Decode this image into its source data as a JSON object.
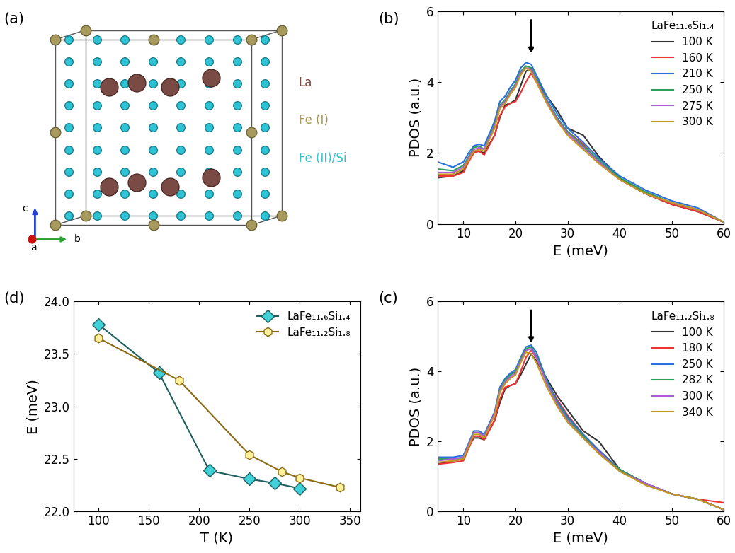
{
  "diagram": {
    "label": "(a)",
    "species": [
      {
        "name": "La",
        "color": "#7a4a44"
      },
      {
        "name": "Fe (I)",
        "color": "#a89a5c"
      },
      {
        "name": "Fe (II)/Si",
        "color": "#2ec4d6"
      }
    ],
    "axes_labels": [
      "a",
      "b",
      "c"
    ]
  },
  "chart_data": [
    {
      "type": "line",
      "label": "(b)",
      "legend_title": "LaFe₁₁.₆Si₁.₄",
      "xlabel": "E (meV)",
      "ylabel": "PDOS (a.u.)",
      "arrow_x": 23,
      "legend": "upper right",
      "x": [
        5,
        8,
        10,
        11,
        12,
        13,
        14,
        16,
        17,
        18,
        19,
        20,
        21,
        22,
        23,
        24,
        26,
        28,
        30,
        33,
        36,
        40,
        45,
        50,
        55,
        60
      ],
      "xlim": [
        5,
        60
      ],
      "xticks": [
        10,
        20,
        30,
        40,
        50,
        60
      ],
      "ylim": [
        0,
        6
      ],
      "yticks": [
        0,
        2,
        4,
        6
      ],
      "series": [
        {
          "name": "100 K",
          "color": "#333333",
          "values": [
            1.3,
            1.35,
            1.5,
            1.8,
            2.05,
            2.05,
            2.0,
            2.5,
            3.0,
            3.35,
            3.4,
            3.5,
            3.9,
            4.3,
            4.4,
            4.1,
            3.6,
            3.2,
            2.7,
            2.5,
            1.9,
            1.3,
            0.85,
            0.55,
            0.35,
            0.05
          ]
        },
        {
          "name": "160 K",
          "color": "#ee3333",
          "values": [
            1.35,
            1.35,
            1.45,
            1.75,
            2.0,
            2.05,
            1.95,
            2.5,
            3.05,
            3.3,
            3.4,
            3.45,
            3.7,
            4.0,
            4.25,
            4.0,
            3.45,
            2.95,
            2.6,
            2.25,
            1.75,
            1.25,
            0.85,
            0.55,
            0.35,
            0.05
          ]
        },
        {
          "name": "210 K",
          "color": "#2a6fdb",
          "values": [
            1.75,
            1.6,
            1.75,
            2.0,
            2.2,
            2.25,
            2.2,
            2.9,
            3.45,
            3.6,
            3.85,
            4.05,
            4.4,
            4.55,
            4.5,
            4.2,
            3.6,
            3.1,
            2.7,
            2.3,
            1.85,
            1.35,
            0.95,
            0.65,
            0.45,
            0.05
          ]
        },
        {
          "name": "250 K",
          "color": "#2ca05a",
          "values": [
            1.55,
            1.5,
            1.65,
            1.9,
            2.15,
            2.2,
            2.1,
            2.8,
            3.35,
            3.5,
            3.75,
            3.95,
            4.3,
            4.45,
            4.4,
            4.1,
            3.5,
            3.0,
            2.6,
            2.2,
            1.8,
            1.3,
            0.9,
            0.6,
            0.4,
            0.05
          ]
        },
        {
          "name": "275 K",
          "color": "#b05ad6",
          "values": [
            1.45,
            1.45,
            1.6,
            1.85,
            2.1,
            2.15,
            2.1,
            2.75,
            3.3,
            3.45,
            3.7,
            3.9,
            4.25,
            4.4,
            4.35,
            4.05,
            3.45,
            2.95,
            2.55,
            2.15,
            1.75,
            1.25,
            0.85,
            0.6,
            0.4,
            0.05
          ]
        },
        {
          "name": "300 K",
          "color": "#c49a1c",
          "values": [
            1.4,
            1.4,
            1.55,
            1.8,
            2.05,
            2.1,
            2.05,
            2.7,
            3.25,
            3.4,
            3.65,
            3.85,
            4.2,
            4.4,
            4.3,
            4.0,
            3.4,
            2.9,
            2.5,
            2.1,
            1.7,
            1.25,
            0.85,
            0.6,
            0.4,
            0.05
          ]
        }
      ]
    },
    {
      "type": "line",
      "label": "(c)",
      "legend_title": "LaFe₁₁.₂Si₁.₈",
      "xlabel": "E (meV)",
      "ylabel": "PDOS (a.u.)",
      "arrow_x": 23,
      "legend": "upper right",
      "x": [
        5,
        8,
        10,
        11,
        12,
        13,
        14,
        16,
        17,
        18,
        19,
        20,
        21,
        22,
        23,
        24,
        26,
        28,
        30,
        33,
        36,
        40,
        45,
        50,
        55,
        60
      ],
      "xlim": [
        5,
        60
      ],
      "xticks": [
        10,
        20,
        30,
        40,
        50,
        60
      ],
      "ylim": [
        0,
        6
      ],
      "yticks": [
        0,
        2,
        4,
        6
      ],
      "series": [
        {
          "name": "100 K",
          "color": "#333333",
          "values": [
            1.35,
            1.45,
            1.5,
            1.85,
            2.1,
            2.1,
            2.05,
            2.6,
            3.1,
            3.5,
            3.6,
            3.65,
            3.9,
            4.2,
            4.5,
            4.3,
            3.8,
            3.3,
            2.9,
            2.3,
            2.0,
            1.2,
            0.8,
            0.5,
            0.35,
            0.05
          ]
        },
        {
          "name": "180 K",
          "color": "#ee3333",
          "values": [
            1.35,
            1.4,
            1.45,
            1.8,
            2.15,
            2.15,
            2.05,
            2.6,
            3.2,
            3.55,
            3.6,
            3.65,
            4.0,
            4.4,
            4.6,
            4.4,
            3.7,
            3.2,
            2.75,
            2.2,
            1.75,
            1.2,
            0.8,
            0.5,
            0.35,
            0.25
          ]
        },
        {
          "name": "250 K",
          "color": "#2a6fdb",
          "values": [
            1.55,
            1.55,
            1.6,
            1.95,
            2.3,
            2.3,
            2.2,
            2.85,
            3.55,
            3.8,
            3.95,
            4.05,
            4.4,
            4.7,
            4.75,
            4.55,
            3.75,
            3.15,
            2.7,
            2.2,
            1.75,
            1.2,
            0.8,
            0.5,
            0.35,
            0.05
          ]
        },
        {
          "name": "282 K",
          "color": "#2ca05a",
          "values": [
            1.5,
            1.5,
            1.55,
            1.9,
            2.25,
            2.25,
            2.15,
            2.8,
            3.5,
            3.75,
            3.9,
            4.0,
            4.35,
            4.65,
            4.7,
            4.45,
            3.7,
            3.1,
            2.65,
            2.15,
            1.7,
            1.2,
            0.8,
            0.5,
            0.35,
            0.05
          ]
        },
        {
          "name": "300 K",
          "color": "#b05ad6",
          "values": [
            1.45,
            1.5,
            1.55,
            1.9,
            2.25,
            2.25,
            2.15,
            2.8,
            3.45,
            3.7,
            3.85,
            3.95,
            4.3,
            4.6,
            4.65,
            4.4,
            3.65,
            3.05,
            2.6,
            2.1,
            1.7,
            1.15,
            0.8,
            0.5,
            0.35,
            0.05
          ]
        },
        {
          "name": "340 K",
          "color": "#c49a1c",
          "values": [
            1.4,
            1.45,
            1.5,
            1.85,
            2.2,
            2.2,
            2.1,
            2.75,
            3.4,
            3.65,
            3.8,
            3.9,
            4.25,
            4.55,
            4.5,
            4.25,
            3.55,
            3.0,
            2.55,
            2.1,
            1.65,
            1.15,
            0.75,
            0.5,
            0.35,
            0.05
          ]
        }
      ]
    },
    {
      "type": "line",
      "label": "(d)",
      "xlabel": "T (K)",
      "ylabel": "E (meV)",
      "legend": "upper right",
      "xlim": [
        75,
        360
      ],
      "xticks": [
        100,
        150,
        200,
        250,
        300,
        350
      ],
      "ylim": [
        22.0,
        24.0
      ],
      "yticks": [
        22.0,
        22.5,
        23.0,
        23.5,
        24.0
      ],
      "series": [
        {
          "name": "LaFe₁₁.₆Si₁.₄",
          "color": "#1f5f5f",
          "marker": "diamond",
          "x": [
            100,
            160,
            210,
            250,
            275,
            300
          ],
          "values": [
            23.78,
            23.32,
            22.39,
            22.31,
            22.27,
            22.22
          ]
        },
        {
          "name": "LaFe₁₁.₂Si₁.₈",
          "color": "#8b6a14",
          "marker": "hexagon",
          "x": [
            100,
            180,
            250,
            282,
            300,
            340
          ],
          "values": [
            23.65,
            23.25,
            22.54,
            22.38,
            22.32,
            22.23
          ]
        }
      ]
    }
  ]
}
